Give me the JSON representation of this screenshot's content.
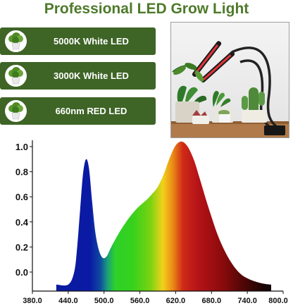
{
  "header": {
    "title": "Professional LED Grow Light"
  },
  "led_types": [
    {
      "label": "5000K White LED",
      "icon": "potted-plant-icon"
    },
    {
      "label": "3000K White LED",
      "icon": "potted-plant-icon"
    },
    {
      "label": "660nm RED LED",
      "icon": "potted-plant-icon"
    }
  ],
  "colors": {
    "title": "#4e7a2a",
    "panel": "#3e6426",
    "red": "#b0171c",
    "blue": "#0a1a9e",
    "green": "#33cc1a"
  },
  "chart_data": {
    "type": "area",
    "title": "",
    "xlabel": "",
    "ylabel": "",
    "xlim": [
      380,
      800
    ],
    "ylim": [
      -0.1,
      1.05
    ],
    "x_ticks": [
      "380.0",
      "440.0",
      "500.0",
      "560.0",
      "620.0",
      "680.0",
      "740.0",
      "800.0"
    ],
    "y_ticks": [
      "1.0",
      "0.8",
      "0.6",
      "0.4",
      "0.2",
      "0.0"
    ],
    "grid": false,
    "series": [
      {
        "x": [
          420,
          440,
          450,
          455,
          460,
          465,
          470,
          475,
          480,
          485,
          490,
          495,
          500,
          505,
          510,
          520,
          530,
          540,
          550,
          560,
          570,
          580,
          590,
          600,
          610,
          620,
          630,
          640,
          650,
          660,
          670,
          680,
          690,
          700,
          710,
          720,
          730,
          740,
          750,
          760,
          770,
          780
        ],
        "y": [
          -0.1,
          -0.1,
          0.0,
          0.2,
          0.5,
          0.79,
          0.9,
          0.82,
          0.56,
          0.33,
          0.2,
          0.13,
          0.11,
          0.13,
          0.18,
          0.27,
          0.35,
          0.42,
          0.48,
          0.53,
          0.57,
          0.62,
          0.68,
          0.78,
          0.91,
          1.01,
          1.04,
          1.0,
          0.9,
          0.75,
          0.59,
          0.44,
          0.3,
          0.19,
          0.1,
          0.03,
          -0.02,
          -0.05,
          -0.07,
          -0.085,
          -0.095,
          -0.1
        ]
      }
    ]
  }
}
